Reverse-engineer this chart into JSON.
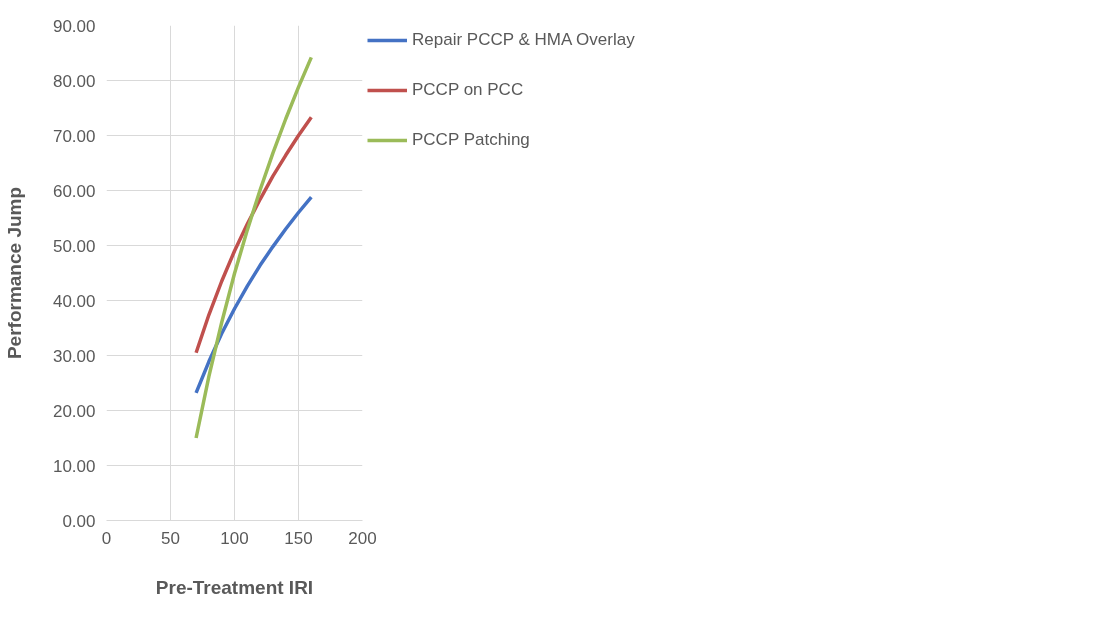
{
  "chart_data": {
    "type": "line",
    "xlabel": "Pre-Treatment IRI",
    "ylabel": "Performance Jump",
    "x": [
      70,
      80,
      90,
      100,
      110,
      120,
      130,
      140,
      150,
      160
    ],
    "series": [
      {
        "name": "Repair PCCP & HMA Overlay",
        "color": "#4472c4",
        "values": [
          23.2,
          28.9,
          34.0,
          38.5,
          42.6,
          46.4,
          49.8,
          53.0,
          56.0,
          58.8
        ]
      },
      {
        "name": "PCCP on PCC",
        "color": "#c0504d",
        "values": [
          30.5,
          37.4,
          43.5,
          49.0,
          53.9,
          58.4,
          62.6,
          66.4,
          70.0,
          73.3
        ]
      },
      {
        "name": "PCCP Patching",
        "color": "#9bbb59",
        "values": [
          15.0,
          26.2,
          36.0,
          44.9,
          52.8,
          60.1,
          66.8,
          73.0,
          78.8,
          84.2
        ]
      }
    ],
    "xlim": [
      0,
      200
    ],
    "xticks": [
      0,
      50,
      100,
      150,
      200
    ],
    "ylim": [
      0,
      90
    ],
    "yticks": [
      {
        "value": 0,
        "label": "0.00"
      },
      {
        "value": 10,
        "label": "10.00"
      },
      {
        "value": 20,
        "label": "20.00"
      },
      {
        "value": 30,
        "label": "30.00"
      },
      {
        "value": 40,
        "label": "40.00"
      },
      {
        "value": 50,
        "label": "50.00"
      },
      {
        "value": 60,
        "label": "60.00"
      },
      {
        "value": 70,
        "label": "70.00"
      },
      {
        "value": 80,
        "label": "80.00"
      },
      {
        "value": 90,
        "label": "90.00"
      }
    ],
    "grid": true,
    "legend": "right",
    "marker": "none",
    "line_style": "solid"
  }
}
